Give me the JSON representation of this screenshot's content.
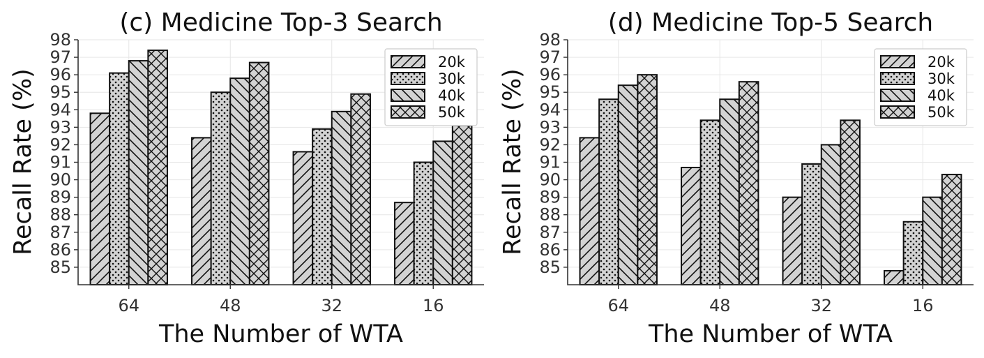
{
  "chart_data": [
    {
      "type": "bar",
      "title": "(c) Medicine Top-3 Search",
      "xlabel": "The Number of WTA",
      "ylabel": "Recall Rate (%)",
      "categories": [
        "64",
        "48",
        "32",
        "16"
      ],
      "yticks": [
        "85",
        "86",
        "87",
        "88",
        "89",
        "90",
        "91",
        "92",
        "93",
        "94",
        "95",
        "96",
        "97",
        "98"
      ],
      "ylim": [
        84,
        98
      ],
      "grid": true,
      "legend_position": "top-right",
      "series": [
        {
          "name": "20k",
          "pattern": "hatch-slash",
          "values": [
            93.8,
            92.4,
            91.6,
            88.7
          ]
        },
        {
          "name": "30k",
          "pattern": "hatch-dots",
          "values": [
            96.1,
            95.0,
            92.9,
            91.0
          ]
        },
        {
          "name": "40k",
          "pattern": "hatch-backslash",
          "values": [
            96.8,
            95.8,
            93.9,
            92.2
          ]
        },
        {
          "name": "50k",
          "pattern": "hatch-cross",
          "values": [
            97.4,
            96.7,
            94.9,
            93.1
          ]
        }
      ]
    },
    {
      "type": "bar",
      "title": "(d) Medicine Top-5 Search",
      "xlabel": "The Number of WTA",
      "ylabel": "Recall Rate (%)",
      "categories": [
        "64",
        "48",
        "32",
        "16"
      ],
      "yticks": [
        "85",
        "86",
        "87",
        "88",
        "89",
        "90",
        "91",
        "92",
        "93",
        "94",
        "95",
        "96",
        "97",
        "98"
      ],
      "ylim": [
        84,
        98
      ],
      "grid": true,
      "legend_position": "top-right",
      "series": [
        {
          "name": "20k",
          "pattern": "hatch-slash",
          "values": [
            92.4,
            90.7,
            89.0,
            84.8
          ]
        },
        {
          "name": "30k",
          "pattern": "hatch-dots",
          "values": [
            94.6,
            93.4,
            90.9,
            87.6
          ]
        },
        {
          "name": "40k",
          "pattern": "hatch-backslash",
          "values": [
            95.4,
            94.6,
            92.0,
            89.0
          ]
        },
        {
          "name": "50k",
          "pattern": "hatch-cross",
          "values": [
            96.0,
            95.6,
            93.4,
            90.3
          ]
        }
      ]
    }
  ],
  "colors": {
    "bar_fill": "#d3d3d3",
    "bar_edge": "#111111",
    "grid": "#e6e6e6",
    "axis": "#333333"
  }
}
